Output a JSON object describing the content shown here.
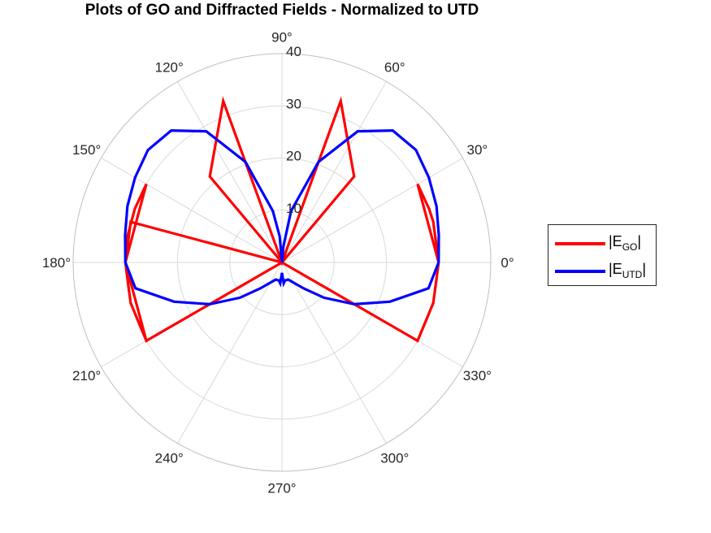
{
  "title": "Plots of GO and Diffracted Fields - Normalized to UTD",
  "colors": {
    "go": "#ff0000",
    "utd": "#0000ff",
    "grid": "#d9d9d9",
    "frame": "#bfbfbf"
  },
  "legend": {
    "go": {
      "prefix": "|E",
      "sub": "GO",
      "suffix": "|"
    },
    "utd": {
      "prefix": "|E",
      "sub": "UTD",
      "suffix": "|"
    }
  },
  "chart_data": {
    "type": "line",
    "coordinate_system": "polar",
    "title": "Plots of GO and Diffracted Fields - Normalized to UTD",
    "rlim": [
      0,
      40
    ],
    "r_ticks": [
      10,
      20,
      30,
      40
    ],
    "theta_ticks_deg": [
      0,
      30,
      60,
      90,
      120,
      150,
      180,
      210,
      240,
      270,
      300,
      330
    ],
    "theta_tick_labels": [
      "0°",
      "30°",
      "60°",
      "90°",
      "120°",
      "150°",
      "180°",
      "210°",
      "240°",
      "270°",
      "300°",
      "330°"
    ],
    "grid": true,
    "legend_position": "right",
    "series": [
      {
        "name": "|E_GO|",
        "color": "#ff0000",
        "theta_deg": [
          0,
          30,
          30,
          20,
          15,
          0,
          -15,
          -30,
          -30,
          -30,
          -30,
          0,
          30,
          50,
          70,
          90,
          110,
          130,
          150,
          165,
          180,
          195,
          210,
          210,
          210,
          210,
          180,
          150,
          150,
          160,
          170,
          180
        ],
        "r": [
          30,
          30,
          30,
          30,
          30,
          30,
          30,
          30,
          30,
          30,
          0,
          0,
          0,
          21.5,
          32.9,
          0,
          32.9,
          21.5,
          0,
          30,
          30,
          30,
          30,
          0,
          0,
          30,
          30,
          30,
          30,
          30,
          30,
          30
        ]
      },
      {
        "name": "|E_UTD|",
        "color": "#0000ff",
        "theta_deg": [
          0,
          10,
          20,
          30,
          40,
          50,
          60,
          70,
          80,
          85,
          90,
          95,
          100,
          110,
          120,
          130,
          140,
          150,
          160,
          170,
          180,
          190,
          200,
          210,
          220,
          230,
          240,
          250,
          260,
          265,
          270,
          275,
          280,
          290,
          300,
          310,
          320,
          330,
          340,
          350,
          360
        ],
        "r": [
          30.0,
          30.5,
          31.5,
          32.5,
          33.5,
          33.0,
          29.0,
          20.5,
          10.0,
          3.0,
          0.0,
          5.0,
          10.0,
          20.5,
          29.0,
          33.0,
          33.5,
          32.5,
          31.5,
          30.5,
          30.0,
          28.5,
          22.0,
          16.0,
          10.5,
          6.5,
          4.5,
          3.5,
          3.5,
          4.0,
          2.0,
          4.0,
          3.5,
          3.5,
          4.5,
          6.5,
          10.5,
          16.0,
          22.0,
          28.5,
          30.0
        ]
      }
    ]
  }
}
